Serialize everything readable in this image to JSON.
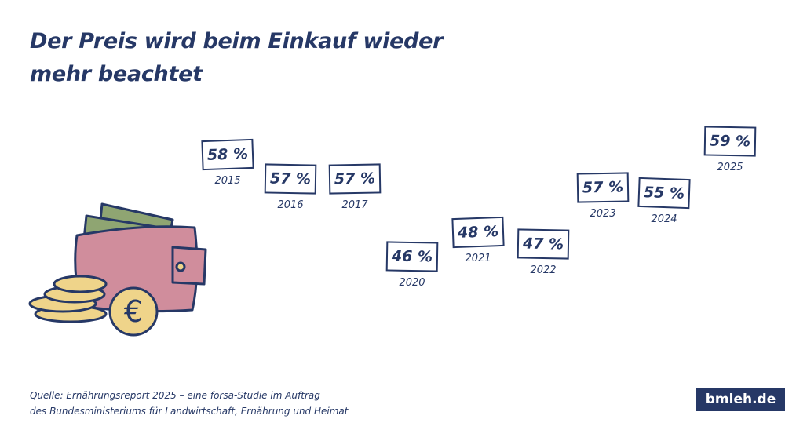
{
  "title": [
    "Der Preis wird beim Einkauf wieder",
    "mehr beachtet"
  ],
  "chart_data": {
    "type": "scatter",
    "title": "Der Preis wird beim Einkauf wieder mehr beachtet",
    "categories": [
      "2015",
      "2016",
      "2017",
      "2020",
      "2021",
      "2022",
      "2023",
      "2024",
      "2025"
    ],
    "values": [
      58,
      57,
      57,
      46,
      48,
      47,
      57,
      55,
      59
    ],
    "value_labels": [
      "58 %",
      "57 %",
      "57 %",
      "46 %",
      "48 %",
      "47 %",
      "57 %",
      "55 %",
      "59 %"
    ],
    "unit": "%",
    "grid": false
  },
  "source": [
    "Quelle: Ernährungsreport 2025 – eine forsa-Studie im Auftrag",
    "des Bundesministeriums für Landwirtschaft, Ernährung und Heimat"
  ],
  "brand": "bmleh.de",
  "colors": {
    "navy": "#263866",
    "wallet": "#d08d9c",
    "money": "#8fa572",
    "coin": "#efd48a"
  }
}
